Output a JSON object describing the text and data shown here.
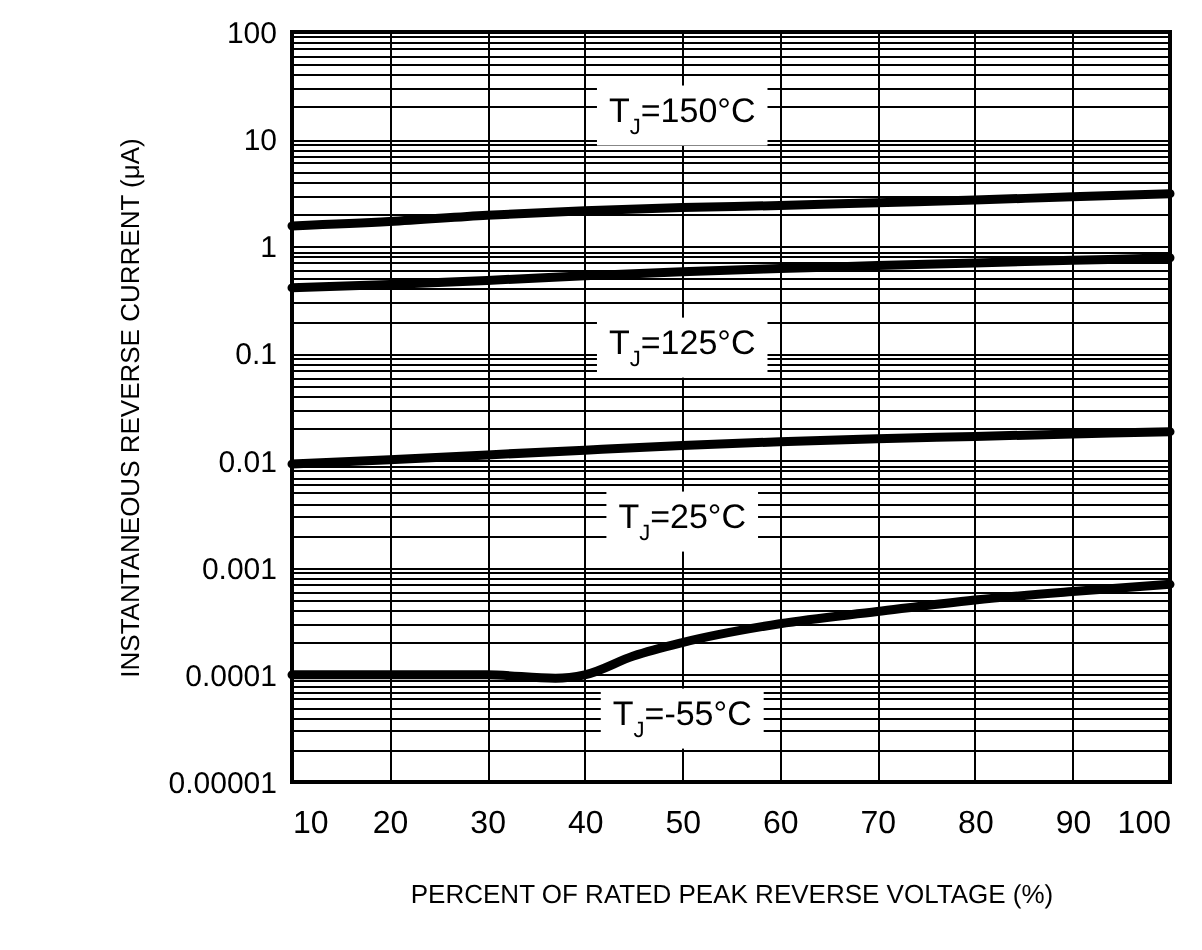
{
  "chart_data": {
    "type": "line",
    "xlabel": "PERCENT OF RATED PEAK REVERSE VOLTAGE (%)",
    "ylabel": "INSTANTANEOUS REVERSE CURRENT (μA)",
    "log": "y",
    "grid": true,
    "legend": false,
    "marker": "none",
    "line_style": "solid",
    "xlim": [
      10,
      100
    ],
    "xticks": [
      10,
      20,
      30,
      40,
      50,
      60,
      70,
      80,
      90,
      100
    ],
    "ylim": [
      1e-05,
      100
    ],
    "yticks": [
      {
        "value": 1e-05,
        "label": "0.00001"
      },
      0.0001,
      0.001,
      0.01,
      0.1,
      1,
      10,
      100
    ],
    "series": [
      {
        "name": "T$_{J}$=150°C",
        "color": "#000000",
        "x": [
          10,
          20,
          30,
          40,
          50,
          60,
          70,
          80,
          90,
          100
        ],
        "values": [
          1.55,
          1.7,
          1.95,
          2.15,
          2.3,
          2.4,
          2.55,
          2.7,
          2.9,
          3.1
        ]
      },
      {
        "name": "T$_{J}$=125°C",
        "color": "#000000",
        "x": [
          10,
          20,
          30,
          40,
          50,
          60,
          70,
          80,
          90,
          100
        ],
        "values": [
          0.41,
          0.44,
          0.48,
          0.53,
          0.58,
          0.62,
          0.66,
          0.7,
          0.74,
          0.78
        ]
      },
      {
        "name": "T$_{J}$=25°C",
        "color": "#000000",
        "x": [
          10,
          20,
          30,
          40,
          50,
          60,
          70,
          80,
          90,
          100
        ],
        "values": [
          0.0093,
          0.0102,
          0.0113,
          0.0125,
          0.0138,
          0.015,
          0.016,
          0.0168,
          0.0177,
          0.0186
        ]
      },
      {
        "name": "T$_{J}$=-55°C",
        "color": "#000000",
        "x": [
          10,
          20,
          30,
          37,
          40,
          45,
          50,
          60,
          70,
          80,
          90,
          100
        ],
        "values": [
          0.0001,
          0.0001,
          0.0001,
          9.3e-05,
          0.0001,
          0.00015,
          0.0002,
          0.0003,
          0.00039,
          0.0005,
          0.0006,
          0.0007
        ]
      }
    ]
  }
}
